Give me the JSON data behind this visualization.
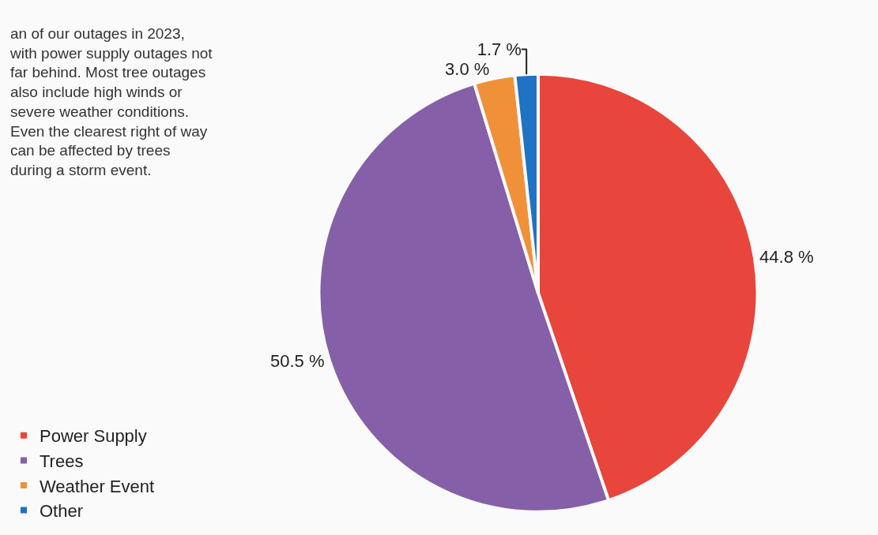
{
  "chart_data": {
    "type": "pie",
    "annotations": [
      "an of our outages in 2023,\nwith power supply outages not\nfar behind. Most tree outages\nalso include high winds or\nsevere weather conditions.\nEven the clearest right of way\ncan be affected by trees\nduring a storm event."
    ],
    "categories": [
      "Power Supply",
      "Trees",
      "Weather Event",
      "Other"
    ],
    "values": [
      44.8,
      50.5,
      3.0,
      1.7
    ],
    "value_labels": [
      "44.8 %",
      "50.5 %",
      "3.0 %",
      "1.7 %"
    ],
    "colors": [
      "#e8453c",
      "#8560a8",
      "#f0913a",
      "#1f72c4"
    ],
    "legend": "bottom left"
  }
}
